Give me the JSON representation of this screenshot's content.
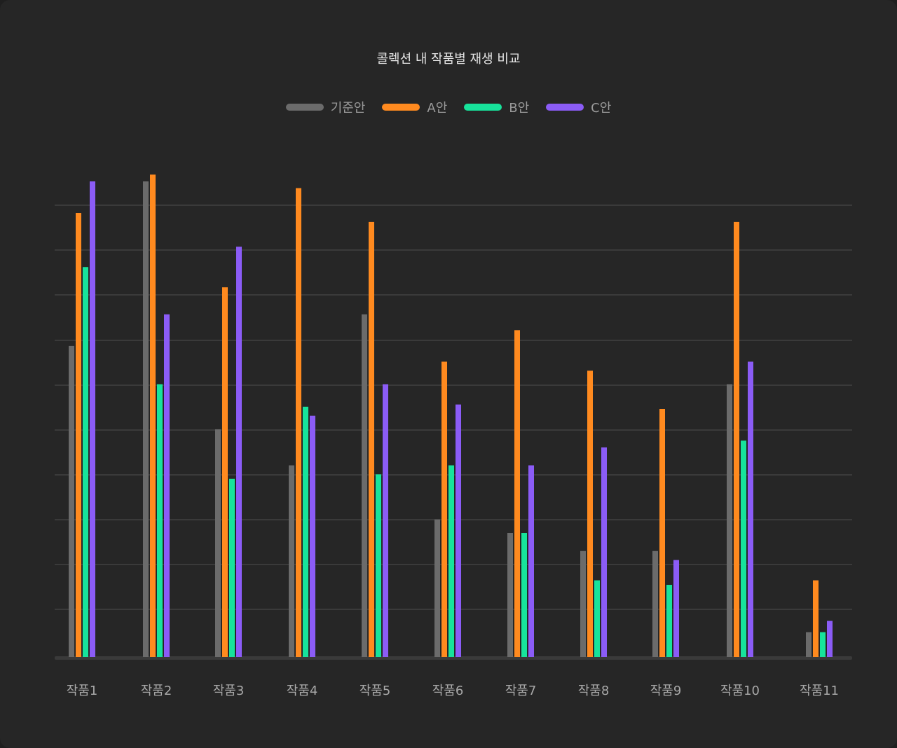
{
  "chart_data": {
    "type": "bar",
    "title": "콜렉션 내 작품별 재생 비교",
    "categories": [
      "작품1",
      "작품2",
      "작품3",
      "작품4",
      "작품5",
      "작품6",
      "작품7",
      "작품8",
      "작품9",
      "작품10",
      "작품11"
    ],
    "series": [
      {
        "name": "기준안",
        "color": "#6b6b6b",
        "values": [
          690,
          1055,
          505,
          425,
          760,
          305,
          275,
          235,
          235,
          605,
          55
        ]
      },
      {
        "name": "A안",
        "color": "#ff8a1f",
        "values": [
          985,
          1070,
          820,
          1040,
          965,
          655,
          725,
          635,
          550,
          965,
          170
        ]
      },
      {
        "name": "B안",
        "color": "#17e39b",
        "values": [
          865,
          605,
          395,
          555,
          405,
          425,
          275,
          170,
          160,
          480,
          55
        ]
      },
      {
        "name": "C안",
        "color": "#8b5cf6",
        "values": [
          1055,
          760,
          910,
          535,
          605,
          560,
          425,
          465,
          215,
          655,
          80
        ]
      }
    ],
    "ylim": [
      0,
      1100
    ],
    "grid": true,
    "legend": "top-center",
    "xlabel": "",
    "ylabel": ""
  }
}
